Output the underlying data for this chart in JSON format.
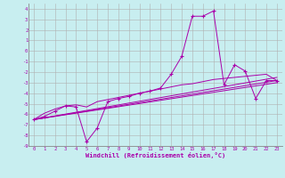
{
  "xlabel": "Windchill (Refroidissement éolien,°C)",
  "background_color": "#c8eef0",
  "grid_color": "#b0b0b0",
  "line_color": "#aa00aa",
  "xlim": [
    -0.5,
    23.5
  ],
  "ylim": [
    -9,
    4.5
  ],
  "xticks": [
    0,
    1,
    2,
    3,
    4,
    5,
    6,
    7,
    8,
    9,
    10,
    11,
    12,
    13,
    14,
    15,
    16,
    17,
    18,
    19,
    20,
    21,
    22,
    23
  ],
  "yticks": [
    4,
    3,
    2,
    1,
    0,
    -1,
    -2,
    -3,
    -4,
    -5,
    -6,
    -7,
    -8,
    -9
  ],
  "main_curve_x": [
    0,
    1,
    2,
    3,
    4,
    5,
    6,
    7,
    8,
    9,
    10,
    11,
    12,
    13,
    14,
    15,
    16,
    17,
    18,
    19,
    20,
    21,
    22,
    23
  ],
  "main_curve_y": [
    -6.5,
    -6.2,
    -5.7,
    -5.2,
    -5.3,
    -8.6,
    -7.3,
    -4.8,
    -4.5,
    -4.3,
    -4.0,
    -3.8,
    -3.5,
    -2.2,
    -0.5,
    3.3,
    3.3,
    3.8,
    -3.2,
    -1.3,
    -1.9,
    -4.5,
    -2.8,
    -2.8
  ],
  "smooth_curve_x": [
    0,
    1,
    2,
    3,
    4,
    5,
    6,
    7,
    8,
    9,
    10,
    11,
    12,
    13,
    14,
    15,
    16,
    17,
    18,
    19,
    20,
    21,
    22,
    23
  ],
  "smooth_curve_y": [
    -6.5,
    -5.9,
    -5.5,
    -5.2,
    -5.1,
    -5.3,
    -4.8,
    -4.6,
    -4.4,
    -4.2,
    -4.0,
    -3.8,
    -3.6,
    -3.4,
    -3.2,
    -3.1,
    -2.9,
    -2.7,
    -2.6,
    -2.5,
    -2.4,
    -2.3,
    -2.2,
    -2.8
  ],
  "line1_x": [
    0,
    23
  ],
  "line1_y": [
    -6.5,
    -2.5
  ],
  "line2_x": [
    0,
    23
  ],
  "line2_y": [
    -6.5,
    -3.0
  ],
  "line3_x": [
    0,
    23
  ],
  "line3_y": [
    -6.5,
    -2.8
  ]
}
